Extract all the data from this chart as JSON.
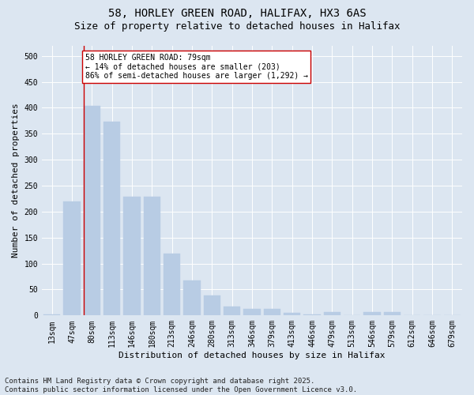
{
  "title1": "58, HORLEY GREEN ROAD, HALIFAX, HX3 6AS",
  "title2": "Size of property relative to detached houses in Halifax",
  "xlabel": "Distribution of detached houses by size in Halifax",
  "ylabel": "Number of detached properties",
  "categories": [
    "13sqm",
    "47sqm",
    "80sqm",
    "113sqm",
    "146sqm",
    "180sqm",
    "213sqm",
    "246sqm",
    "280sqm",
    "313sqm",
    "346sqm",
    "379sqm",
    "413sqm",
    "446sqm",
    "479sqm",
    "513sqm",
    "546sqm",
    "579sqm",
    "612sqm",
    "646sqm",
    "679sqm"
  ],
  "values": [
    2,
    220,
    403,
    373,
    228,
    228,
    119,
    68,
    38,
    17,
    13,
    12,
    5,
    2,
    6,
    0,
    6,
    6,
    1,
    0,
    1
  ],
  "bar_color": "#b8cce4",
  "bar_edge_color": "#b8cce4",
  "vline_x": 2,
  "vline_color": "#cc0000",
  "annotation_text": "58 HORLEY GREEN ROAD: 79sqm\n← 14% of detached houses are smaller (203)\n86% of semi-detached houses are larger (1,292) →",
  "annotation_box_color": "white",
  "annotation_box_edge_color": "#cc0000",
  "ylim": [
    0,
    520
  ],
  "yticks": [
    0,
    50,
    100,
    150,
    200,
    250,
    300,
    350,
    400,
    450,
    500
  ],
  "bg_color": "#dce6f1",
  "plot_bg_color": "#dce6f1",
  "footer_text": "Contains HM Land Registry data © Crown copyright and database right 2025.\nContains public sector information licensed under the Open Government Licence v3.0.",
  "title_fontsize": 10,
  "subtitle_fontsize": 9,
  "annotation_fontsize": 7,
  "footer_fontsize": 6.5,
  "tick_fontsize": 7,
  "ylabel_fontsize": 8,
  "xlabel_fontsize": 8
}
